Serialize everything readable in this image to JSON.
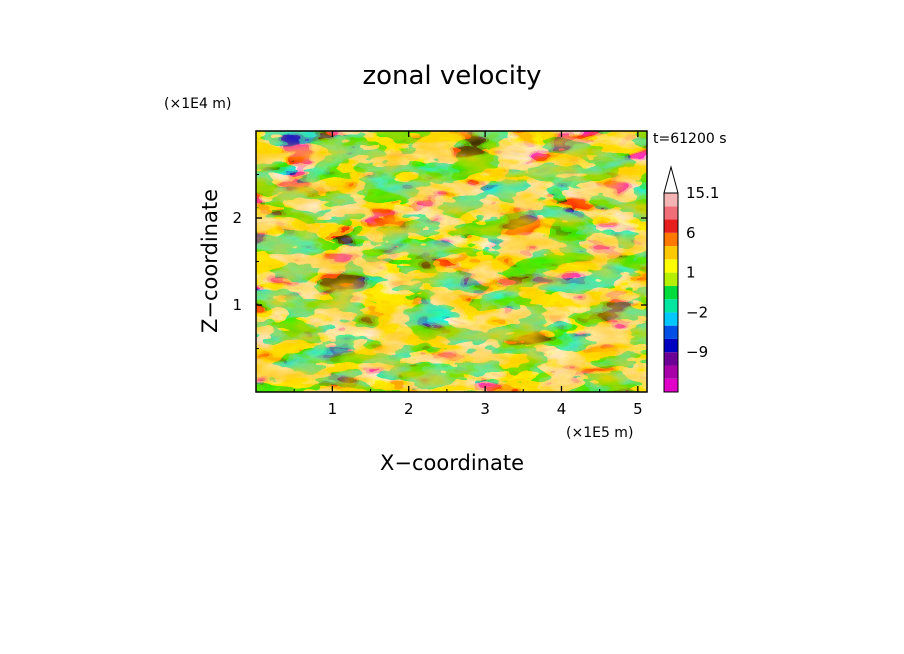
{
  "chart_data": {
    "type": "heatmap",
    "title": "zonal velocity",
    "xlabel": "X−coordinate",
    "ylabel": "Z−coordinate",
    "x_scale_note": "(×1E5 m)",
    "y_scale_note": "(×1E4 m)",
    "time_label": "t=61200 s",
    "xlim": [
      0,
      5.12
    ],
    "ylim": [
      0,
      3.0
    ],
    "x_ticks": [
      1,
      2,
      3,
      4,
      5
    ],
    "x_tick_labels": [
      "1",
      "2",
      "3",
      "4",
      "5"
    ],
    "y_ticks": [
      1,
      2
    ],
    "y_tick_labels": [
      "1",
      "2"
    ],
    "colorbar": {
      "levels": [
        -15,
        -12,
        -9,
        -6,
        -3,
        -2,
        -1,
        0,
        1,
        2,
        3,
        6,
        9,
        12,
        15.1
      ],
      "colors": [
        "#e000c8",
        "#a800a8",
        "#6c0096",
        "#0000c0",
        "#0050e8",
        "#00c8ff",
        "#00e6a0",
        "#00dc3c",
        "#b4f000",
        "#ffff00",
        "#ffc800",
        "#ff7800",
        "#e61e1e",
        "#f06e78",
        "#f4b4b4"
      ],
      "tick_values": [
        15.1,
        6,
        1,
        -2,
        -9
      ],
      "tick_labels": [
        "15.1",
        "6",
        "1",
        "−2",
        "−9"
      ],
      "extend_max": true
    }
  }
}
